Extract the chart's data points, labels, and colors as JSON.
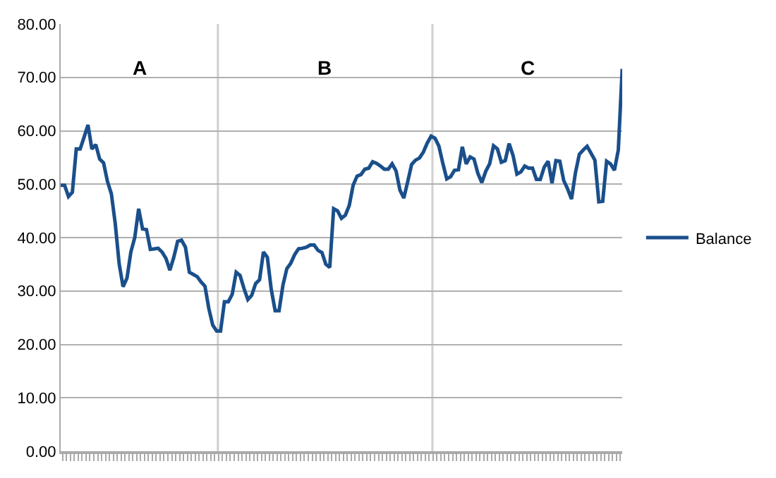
{
  "chart_data": {
    "type": "line",
    "categories": [
      null,
      null,
      null,
      null,
      null,
      null,
      null,
      null,
      null,
      null,
      null,
      null,
      null,
      null,
      null,
      null,
      null,
      null,
      null,
      null,
      null,
      null,
      null,
      null,
      null,
      null,
      null,
      null,
      null,
      null,
      null,
      null,
      null,
      null,
      null,
      null,
      null,
      null,
      null,
      null,
      null,
      null,
      null,
      null,
      null,
      null,
      null,
      null,
      null,
      null,
      null,
      null,
      null,
      null,
      null,
      null,
      null,
      null,
      null,
      null,
      null,
      null,
      null,
      null,
      null,
      null,
      null,
      null,
      null,
      null,
      null,
      null,
      null,
      null,
      null,
      null,
      null,
      null,
      null,
      null,
      null,
      null,
      null,
      null,
      null,
      null,
      null,
      null,
      null,
      null,
      null,
      null,
      null,
      null,
      null,
      null,
      null,
      null,
      null,
      null,
      null,
      null,
      null,
      null,
      null,
      null,
      null,
      null,
      null,
      null,
      null,
      null,
      null,
      null,
      null,
      null,
      null,
      null,
      null,
      null,
      null,
      null,
      null,
      null,
      null,
      null,
      null,
      null,
      null,
      null,
      null,
      null,
      null,
      null,
      null,
      null,
      null,
      null,
      null,
      null,
      null,
      null,
      null,
      null,
      null
    ],
    "tick_labels": "y",
    "ylim": [
      0,
      80
    ],
    "yticks": [
      {
        "value": 0,
        "label": "0.00"
      },
      {
        "value": 10,
        "label": "10.00"
      },
      {
        "value": 20,
        "label": "20.00"
      },
      {
        "value": 30,
        "label": "30.00"
      },
      {
        "value": 40,
        "label": "40.00"
      },
      {
        "value": 50,
        "label": "50.00"
      },
      {
        "value": 60,
        "label": "60.00"
      },
      {
        "value": 70,
        "label": "70.00"
      },
      {
        "value": 80,
        "label": "80.00"
      }
    ],
    "grid": "y",
    "legend": "right",
    "marker": "none",
    "line_style": "solid",
    "annotations": [
      "A",
      "B",
      "C"
    ],
    "series": [
      {
        "name": "Balance",
        "color": "#1a4f8b",
        "values": [
          49.8,
          49.8,
          47.7,
          48.5,
          56.6,
          56.6,
          58.8,
          61.1,
          56.6,
          57.4,
          54.7,
          54.0,
          50.5,
          48.2,
          42.6,
          35.1,
          30.8,
          32.4,
          37.3,
          40.0,
          45.4,
          41.6,
          41.5,
          37.8,
          37.9,
          38.0,
          37.3,
          36.1,
          33.9,
          36.3,
          39.3,
          39.5,
          38.2,
          33.5,
          33.1,
          32.7,
          31.7,
          30.9,
          26.7,
          23.6,
          22.5,
          22.5,
          28.0,
          28.0,
          29.4,
          33.5,
          32.9,
          30.5,
          28.4,
          29.2,
          31.4,
          32.1,
          37.3,
          36.3,
          30.3,
          26.3,
          26.3,
          31.1,
          34.2,
          35.2,
          36.8,
          37.9,
          38.0,
          38.2,
          38.6,
          38.6,
          37.6,
          37.2,
          35.0,
          34.4,
          45.4,
          45.0,
          43.6,
          44.2,
          46.0,
          49.8,
          51.5,
          51.8,
          52.8,
          53.0,
          54.2,
          53.9,
          53.4,
          52.8,
          52.8,
          53.8,
          52.5,
          48.9,
          47.4,
          50.5,
          53.7,
          54.5,
          54.9,
          56.0,
          57.7,
          59.0,
          58.6,
          57.1,
          53.9,
          51.0,
          51.4,
          52.6,
          52.7,
          57.0,
          53.8,
          55.1,
          54.7,
          52.0,
          50.3,
          52.4,
          53.8,
          57.2,
          56.6,
          54.1,
          54.4,
          57.6,
          55.4,
          51.9,
          52.3,
          53.4,
          53.0,
          53.0,
          50.9,
          50.9,
          53.2,
          54.3,
          50.2,
          54.4,
          54.3,
          50.7,
          49.1,
          47.2,
          52.1,
          55.6,
          56.4,
          57.1,
          55.8,
          54.5,
          46.7,
          46.8,
          54.3,
          53.8,
          52.6,
          56.4,
          71.6
        ]
      }
    ]
  }
}
